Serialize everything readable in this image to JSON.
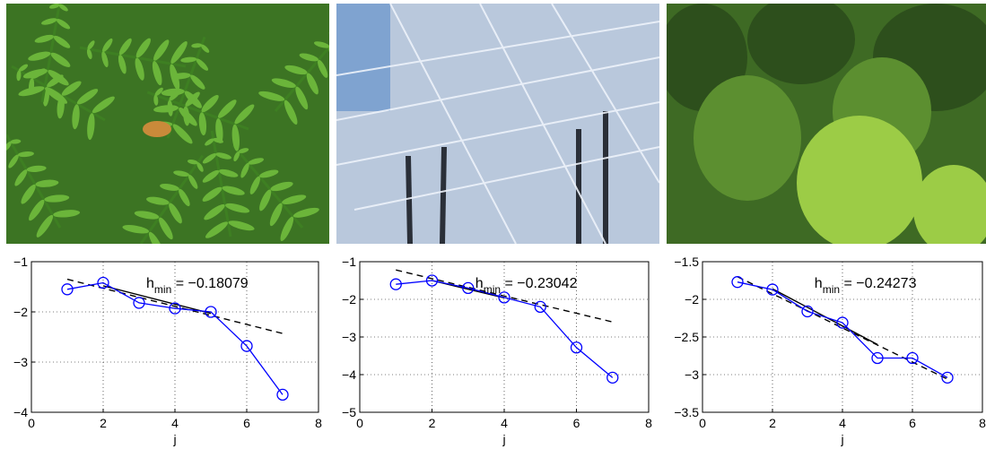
{
  "photos": [
    {
      "subject": "fern-leaves-with-butterfly",
      "colors": [
        "#2f6a1e",
        "#4f9a2c",
        "#7cc244",
        "#c98a3a"
      ]
    },
    {
      "subject": "frost-covered-trees",
      "colors": [
        "#2a2f38",
        "#c9d6e6",
        "#eef3fb",
        "#5a6f8a"
      ]
    },
    {
      "subject": "forest-canopy",
      "colors": [
        "#2d4f1c",
        "#4c7f2b",
        "#8cbf3f",
        "#c8e06a"
      ]
    }
  ],
  "chart_data": [
    {
      "type": "line",
      "x": [
        1,
        2,
        3,
        4,
        5,
        6,
        7
      ],
      "series": [
        {
          "values": [
            -1.55,
            -1.42,
            -1.82,
            -1.93,
            -2.0,
            -2.68,
            -3.65
          ],
          "color": "#0000ff",
          "marker": "circle"
        },
        {
          "style": "dashed",
          "color": "#000000",
          "line": {
            "x": [
              1,
              7
            ],
            "y": [
              -1.35,
              -2.43
            ]
          }
        },
        {
          "style": "solid",
          "color": "#000000",
          "line": {
            "x": [
              2,
              5
            ],
            "y": [
              -1.48,
              -2.03
            ]
          }
        }
      ],
      "xlim": [
        0,
        8
      ],
      "ylim": [
        -4,
        -1
      ],
      "xticks": [
        "0",
        "2",
        "4",
        "6",
        "8"
      ],
      "yticks": [
        "−1",
        "−2",
        "−3",
        "−4"
      ],
      "xlabel": "j",
      "annotation": {
        "main": "h",
        "sub": "min",
        "value": " = −0.18079"
      },
      "grid": true
    },
    {
      "type": "line",
      "x": [
        1,
        2,
        3,
        4,
        5,
        6,
        7
      ],
      "series": [
        {
          "values": [
            -1.6,
            -1.5,
            -1.7,
            -1.95,
            -2.2,
            -3.28,
            -4.08
          ],
          "color": "#0000ff",
          "marker": "circle"
        },
        {
          "style": "dashed",
          "color": "#000000",
          "line": {
            "x": [
              1,
              7
            ],
            "y": [
              -1.22,
              -2.6
            ]
          }
        },
        {
          "style": "solid",
          "color": "#000000",
          "line": {
            "x": [
              2,
              4
            ],
            "y": [
              -1.5,
              -1.96
            ]
          }
        }
      ],
      "xlim": [
        0,
        8
      ],
      "ylim": [
        -5,
        -1
      ],
      "xticks": [
        "0",
        "2",
        "4",
        "6",
        "8"
      ],
      "yticks": [
        "−1",
        "−2",
        "−3",
        "−4",
        "−5"
      ],
      "xlabel": "j",
      "annotation": {
        "main": "h",
        "sub": "min",
        "value": " = −0.23042"
      },
      "grid": true
    },
    {
      "type": "line",
      "x": [
        1,
        2,
        3,
        4,
        5,
        6,
        7
      ],
      "series": [
        {
          "values": [
            -1.77,
            -1.87,
            -2.16,
            -2.31,
            -2.78,
            -2.78,
            -3.04
          ],
          "color": "#0000ff",
          "marker": "circle"
        },
        {
          "style": "dashed",
          "color": "#000000",
          "line": {
            "x": [
              1,
              7
            ],
            "y": [
              -1.7,
              -3.06
            ]
          }
        },
        {
          "style": "solid",
          "color": "#000000",
          "line": {
            "x": [
              2,
              5
            ],
            "y": [
              -1.86,
              -2.6
            ]
          }
        }
      ],
      "xlim": [
        0,
        8
      ],
      "ylim": [
        -3.5,
        -1.5
      ],
      "xticks": [
        "0",
        "2",
        "4",
        "6",
        "8"
      ],
      "yticks": [
        "−1.5",
        "−2",
        "−2.5",
        "−3",
        "−3.5"
      ],
      "xlabel": "j",
      "annotation": {
        "main": "h",
        "sub": "min",
        "value": " = −0.24273"
      },
      "grid": true
    }
  ]
}
